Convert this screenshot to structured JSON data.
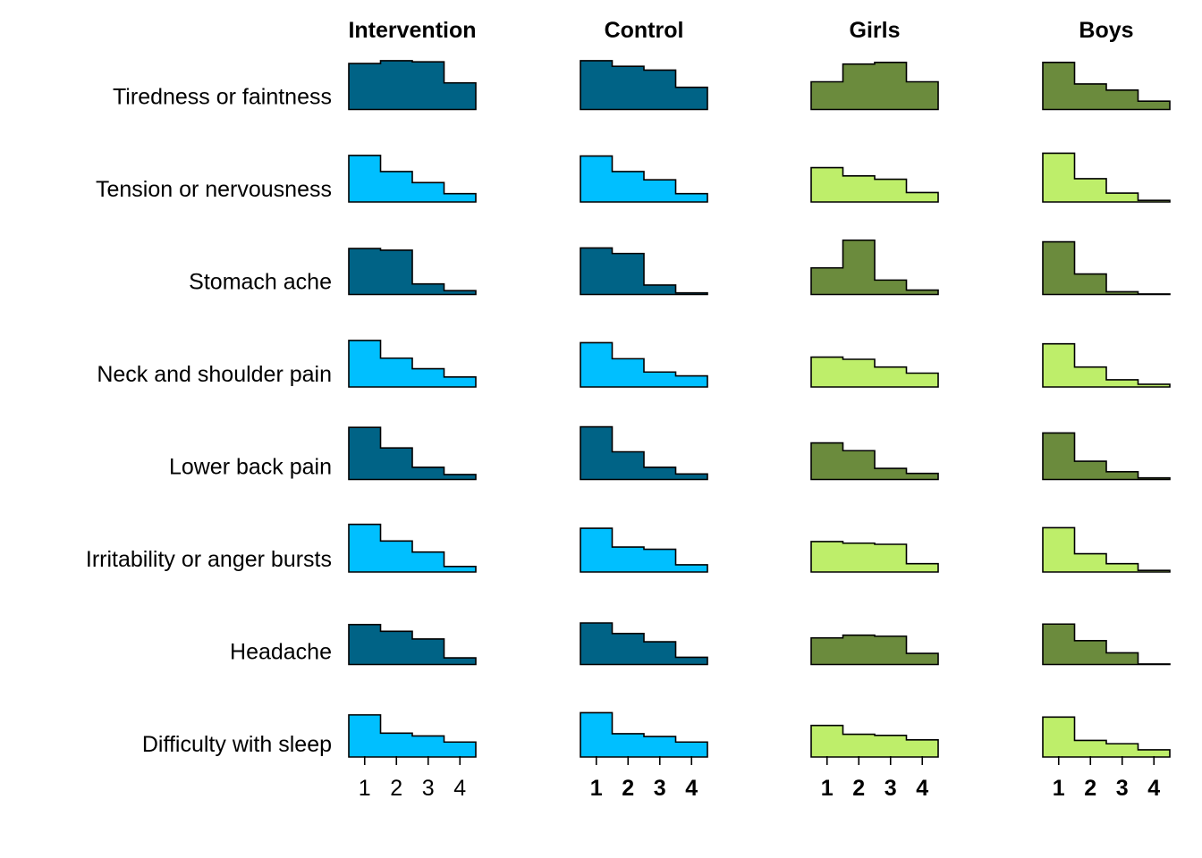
{
  "colors": {
    "row_odd_dark_blue": "#006386",
    "row_even_light_blue": "#00BFFF",
    "row_odd_dark_green": "#6B8B3D",
    "row_even_light_green": "#BEEE6A",
    "stroke": "#000000"
  },
  "chart_data": {
    "type": "step-histogram-grid",
    "columns": [
      {
        "title": "Intervention",
        "palette": "blue",
        "tick_weight": "normal"
      },
      {
        "title": "Control",
        "palette": "blue",
        "tick_weight": "bold"
      },
      {
        "title": "Girls",
        "palette": "green",
        "tick_weight": "bold"
      },
      {
        "title": "Boys",
        "palette": "green",
        "tick_weight": "bold"
      }
    ],
    "x_categories": [
      "1",
      "2",
      "3",
      "4"
    ],
    "rows": [
      {
        "label": "Tiredness or faintness",
        "series": [
          [
            0.83,
            0.88,
            0.86,
            0.48
          ],
          [
            0.88,
            0.78,
            0.71,
            0.4
          ],
          [
            0.5,
            0.82,
            0.85,
            0.5
          ],
          [
            0.85,
            0.46,
            0.35,
            0.15
          ]
        ]
      },
      {
        "label": "Tension or nervousness",
        "series": [
          [
            0.84,
            0.55,
            0.35,
            0.15
          ],
          [
            0.83,
            0.55,
            0.4,
            0.15
          ],
          [
            0.62,
            0.47,
            0.41,
            0.17
          ],
          [
            0.88,
            0.42,
            0.16,
            0.03
          ]
        ]
      },
      {
        "label": "Stomach ache",
        "series": [
          [
            0.83,
            0.8,
            0.19,
            0.07
          ],
          [
            0.84,
            0.74,
            0.17,
            0.03
          ],
          [
            0.48,
            0.98,
            0.26,
            0.08
          ],
          [
            0.95,
            0.37,
            0.05,
            0.01
          ]
        ]
      },
      {
        "label": "Neck and shoulder pain",
        "series": [
          [
            0.84,
            0.52,
            0.33,
            0.18
          ],
          [
            0.8,
            0.51,
            0.27,
            0.2
          ],
          [
            0.54,
            0.5,
            0.36,
            0.25
          ],
          [
            0.78,
            0.36,
            0.13,
            0.05
          ]
        ]
      },
      {
        "label": "Lower back pain",
        "series": [
          [
            0.94,
            0.57,
            0.22,
            0.09
          ],
          [
            0.95,
            0.5,
            0.22,
            0.1
          ],
          [
            0.66,
            0.52,
            0.2,
            0.11
          ],
          [
            0.84,
            0.33,
            0.14,
            0.03
          ]
        ]
      },
      {
        "label": "Irritability or anger bursts",
        "series": [
          [
            0.86,
            0.56,
            0.36,
            0.1
          ],
          [
            0.79,
            0.45,
            0.41,
            0.13
          ],
          [
            0.55,
            0.52,
            0.5,
            0.15
          ],
          [
            0.8,
            0.33,
            0.15,
            0.03
          ]
        ]
      },
      {
        "label": "Headache",
        "series": [
          [
            0.72,
            0.6,
            0.46,
            0.12
          ],
          [
            0.75,
            0.56,
            0.41,
            0.13
          ],
          [
            0.48,
            0.53,
            0.51,
            0.2
          ],
          [
            0.73,
            0.43,
            0.21,
            0.01
          ]
        ]
      },
      {
        "label": "Difficulty with sleep",
        "series": [
          [
            0.76,
            0.43,
            0.38,
            0.27
          ],
          [
            0.8,
            0.42,
            0.37,
            0.27
          ],
          [
            0.57,
            0.41,
            0.39,
            0.31
          ],
          [
            0.72,
            0.3,
            0.24,
            0.13
          ]
        ]
      }
    ]
  }
}
